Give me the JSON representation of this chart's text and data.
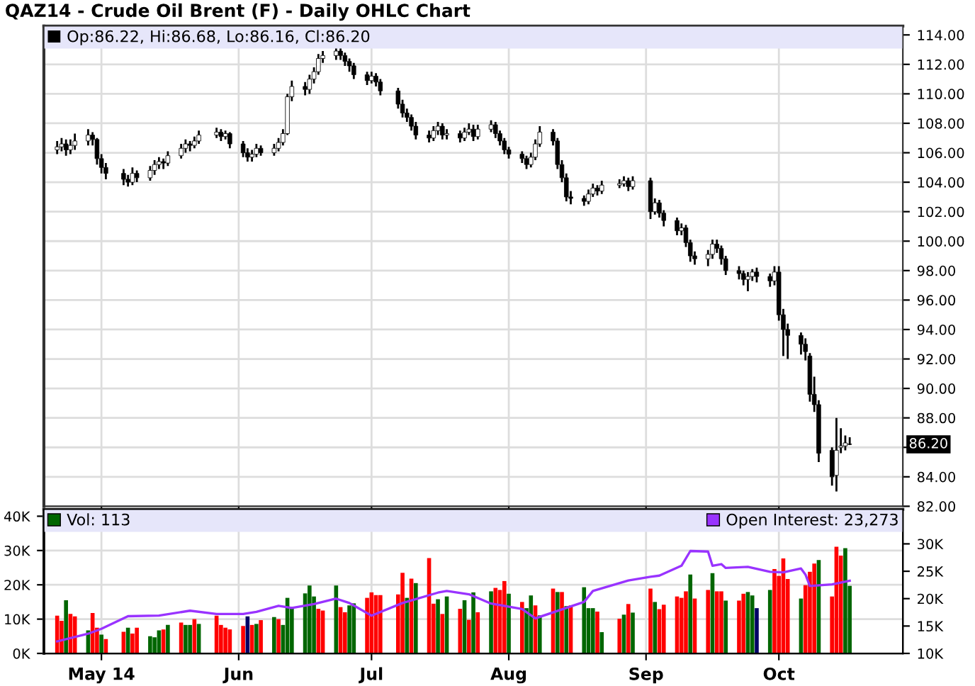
{
  "chart_data": [
    {
      "type": "candlestick",
      "title": "QAZ14 - Crude Oil Brent (F) - Daily OHLC Chart",
      "x": [
        "2014-04-21",
        "2014-04-22",
        "2014-04-23",
        "2014-04-24",
        "2014-04-25",
        "2014-04-28",
        "2014-04-29",
        "2014-04-30",
        "2014-05-01",
        "2014-05-02",
        "2014-05-06",
        "2014-05-07",
        "2014-05-08",
        "2014-05-09",
        "2014-05-12",
        "2014-05-13",
        "2014-05-14",
        "2014-05-15",
        "2014-05-16",
        "2014-05-19",
        "2014-05-20",
        "2014-05-21",
        "2014-05-22",
        "2014-05-23",
        "2014-05-27",
        "2014-05-28",
        "2014-05-29",
        "2014-05-30",
        "2014-06-02",
        "2014-06-03",
        "2014-06-04",
        "2014-06-05",
        "2014-06-06",
        "2014-06-09",
        "2014-06-10",
        "2014-06-11",
        "2014-06-12",
        "2014-06-13",
        "2014-06-16",
        "2014-06-17",
        "2014-06-18",
        "2014-06-19",
        "2014-06-20",
        "2014-06-23",
        "2014-06-24",
        "2014-06-25",
        "2014-06-26",
        "2014-06-27",
        "2014-06-30",
        "2014-07-01",
        "2014-07-02",
        "2014-07-03",
        "2014-07-07",
        "2014-07-08",
        "2014-07-09",
        "2014-07-10",
        "2014-07-11",
        "2014-07-14",
        "2014-07-15",
        "2014-07-16",
        "2014-07-17",
        "2014-07-18",
        "2014-07-21",
        "2014-07-22",
        "2014-07-23",
        "2014-07-24",
        "2014-07-25",
        "2014-07-28",
        "2014-07-29",
        "2014-07-30",
        "2014-07-31",
        "2014-08-01",
        "2014-08-04",
        "2014-08-05",
        "2014-08-06",
        "2014-08-07",
        "2014-08-08",
        "2014-08-11",
        "2014-08-12",
        "2014-08-13",
        "2014-08-14",
        "2014-08-15",
        "2014-08-18",
        "2014-08-19",
        "2014-08-20",
        "2014-08-21",
        "2014-08-22",
        "2014-08-26",
        "2014-08-27",
        "2014-08-28",
        "2014-08-29",
        "2014-09-02",
        "2014-09-03",
        "2014-09-04",
        "2014-09-05",
        "2014-09-08",
        "2014-09-09",
        "2014-09-10",
        "2014-09-11",
        "2014-09-12",
        "2014-09-15",
        "2014-09-16",
        "2014-09-17",
        "2014-09-18",
        "2014-09-19",
        "2014-09-22",
        "2014-09-23",
        "2014-09-24",
        "2014-09-25",
        "2014-09-26",
        "2014-09-29",
        "2014-09-30",
        "2014-10-01",
        "2014-10-02",
        "2014-10-03",
        "2014-10-06",
        "2014-10-07",
        "2014-10-08",
        "2014-10-09",
        "2014-10-10",
        "2014-10-13",
        "2014-10-14",
        "2014-10-15",
        "2014-10-16",
        "2014-10-17"
      ],
      "series": [
        {
          "name": "Op:86.22, Hi:86.68, Lo:86.16, Cl:86.20",
          "color": "#000000",
          "ohlc": [
            [
              106.2,
              106.8,
              105.9,
              106.4
            ],
            [
              106.4,
              107.0,
              106.1,
              106.6
            ],
            [
              106.6,
              106.9,
              105.8,
              106.2
            ],
            [
              106.2,
              106.9,
              105.9,
              106.5
            ],
            [
              106.5,
              107.3,
              106.2,
              106.8
            ],
            [
              106.8,
              107.6,
              106.5,
              107.2
            ],
            [
              107.2,
              107.4,
              106.5,
              106.9
            ],
            [
              106.9,
              107.0,
              105.2,
              105.6
            ],
            [
              105.6,
              105.9,
              104.6,
              105.0
            ],
            [
              105.0,
              105.3,
              104.2,
              104.6
            ],
            [
              104.6,
              104.9,
              103.8,
              104.2
            ],
            [
              104.2,
              104.5,
              103.7,
              104.0
            ],
            [
              104.0,
              105.0,
              103.8,
              104.6
            ],
            [
              104.6,
              104.8,
              104.0,
              104.3
            ],
            [
              104.3,
              105.1,
              104.1,
              104.8
            ],
            [
              104.8,
              105.5,
              104.5,
              105.2
            ],
            [
              105.2,
              105.7,
              104.9,
              105.4
            ],
            [
              105.4,
              105.6,
              104.9,
              105.3
            ],
            [
              105.3,
              106.1,
              105.1,
              105.8
            ],
            [
              105.8,
              106.6,
              105.6,
              106.3
            ],
            [
              106.3,
              106.9,
              106.0,
              106.6
            ],
            [
              106.6,
              106.8,
              106.1,
              106.5
            ],
            [
              106.5,
              107.1,
              106.3,
              106.8
            ],
            [
              106.8,
              107.5,
              106.6,
              107.2
            ],
            [
              107.2,
              107.7,
              107.0,
              107.4
            ],
            [
              107.4,
              107.6,
              106.8,
              107.1
            ],
            [
              107.1,
              107.5,
              106.9,
              107.3
            ],
            [
              107.3,
              107.4,
              106.3,
              106.6
            ],
            [
              106.6,
              106.8,
              105.7,
              106.0
            ],
            [
              106.0,
              106.3,
              105.4,
              105.7
            ],
            [
              105.7,
              106.2,
              105.4,
              105.9
            ],
            [
              105.9,
              106.6,
              105.7,
              106.3
            ],
            [
              106.3,
              106.5,
              105.8,
              106.0
            ],
            [
              106.0,
              106.6,
              105.8,
              106.3
            ],
            [
              106.3,
              107.0,
              106.1,
              106.7
            ],
            [
              106.7,
              107.6,
              106.5,
              107.3
            ],
            [
              107.3,
              110.0,
              107.2,
              109.8
            ],
            [
              109.8,
              110.9,
              109.5,
              110.5
            ],
            [
              110.5,
              110.8,
              109.9,
              110.3
            ],
            [
              110.3,
              111.3,
              110.0,
              111.0
            ],
            [
              111.0,
              111.8,
              110.7,
              111.5
            ],
            [
              111.5,
              112.7,
              111.3,
              112.4
            ],
            [
              112.4,
              112.9,
              112.1,
              112.6
            ],
            [
              112.6,
              113.3,
              112.3,
              112.9
            ],
            [
              112.9,
              113.1,
              112.3,
              112.6
            ],
            [
              112.6,
              112.8,
              111.9,
              112.2
            ],
            [
              112.2,
              112.4,
              111.5,
              111.9
            ],
            [
              111.9,
              112.1,
              111.0,
              111.3
            ],
            [
              111.3,
              111.5,
              110.6,
              110.9
            ],
            [
              110.9,
              111.5,
              110.7,
              111.2
            ],
            [
              111.2,
              111.4,
              110.5,
              110.8
            ],
            [
              110.8,
              111.0,
              109.9,
              110.2
            ],
            [
              110.2,
              110.4,
              109.0,
              109.3
            ],
            [
              109.3,
              109.6,
              108.4,
              108.7
            ],
            [
              108.7,
              109.0,
              108.1,
              108.4
            ],
            [
              108.4,
              108.6,
              107.5,
              107.8
            ],
            [
              107.8,
              108.1,
              106.9,
              107.2
            ],
            [
              107.2,
              107.5,
              106.7,
              107.0
            ],
            [
              107.0,
              107.8,
              106.8,
              107.5
            ],
            [
              107.5,
              108.1,
              107.2,
              107.8
            ],
            [
              107.8,
              108.0,
              106.9,
              107.2
            ],
            [
              107.2,
              107.6,
              106.9,
              107.3
            ],
            [
              107.3,
              107.5,
              106.7,
              107.0
            ],
            [
              107.0,
              107.7,
              106.8,
              107.4
            ],
            [
              107.4,
              108.0,
              107.2,
              107.6
            ],
            [
              107.6,
              107.9,
              106.8,
              107.1
            ],
            [
              107.1,
              107.9,
              106.9,
              107.6
            ],
            [
              107.6,
              108.2,
              107.4,
              107.9
            ],
            [
              107.9,
              108.1,
              107.0,
              107.3
            ],
            [
              107.3,
              107.5,
              106.5,
              106.8
            ],
            [
              106.8,
              107.0,
              105.9,
              106.2
            ],
            [
              106.2,
              106.4,
              105.6,
              105.9
            ],
            [
              105.9,
              106.1,
              105.3,
              105.6
            ],
            [
              105.6,
              105.8,
              104.9,
              105.2
            ],
            [
              105.2,
              106.0,
              105.0,
              105.7
            ],
            [
              105.7,
              106.9,
              105.5,
              106.6
            ],
            [
              106.6,
              107.8,
              106.4,
              107.4
            ],
            [
              107.4,
              107.6,
              106.5,
              106.8
            ],
            [
              106.8,
              107.0,
              104.9,
              105.2
            ],
            [
              105.2,
              105.5,
              104.0,
              104.3
            ],
            [
              104.3,
              104.6,
              102.7,
              103.0
            ],
            [
              103.0,
              103.4,
              102.5,
              102.9
            ],
            [
              102.9,
              103.1,
              102.4,
              102.7
            ],
            [
              102.7,
              103.5,
              102.5,
              103.2
            ],
            [
              103.2,
              103.9,
              103.0,
              103.6
            ],
            [
              103.6,
              103.8,
              103.1,
              103.4
            ],
            [
              103.4,
              104.1,
              103.2,
              103.8
            ],
            [
              103.8,
              104.2,
              103.6,
              103.9
            ],
            [
              103.9,
              104.4,
              103.7,
              104.1
            ],
            [
              104.1,
              104.3,
              103.4,
              103.7
            ],
            [
              103.7,
              104.4,
              103.5,
              104.1
            ],
            [
              104.1,
              104.3,
              101.5,
              102.0
            ],
            [
              102.0,
              102.9,
              101.8,
              102.6
            ],
            [
              102.6,
              102.8,
              101.6,
              101.9
            ],
            [
              101.9,
              102.1,
              101.0,
              101.4
            ],
            [
              101.4,
              101.6,
              100.4,
              100.7
            ],
            [
              100.7,
              101.2,
              100.4,
              100.9
            ],
            [
              100.9,
              101.1,
              99.6,
              99.9
            ],
            [
              99.9,
              100.1,
              98.6,
              99.0
            ],
            [
              99.0,
              99.3,
              98.4,
              98.8
            ],
            [
              98.8,
              99.4,
              98.3,
              99.1
            ],
            [
              99.1,
              100.1,
              98.8,
              99.8
            ],
            [
              99.8,
              100.1,
              99.2,
              99.5
            ],
            [
              99.5,
              99.7,
              98.4,
              98.8
            ],
            [
              98.8,
              99.0,
              97.7,
              98.0
            ],
            [
              98.0,
              98.3,
              97.4,
              97.8
            ],
            [
              97.8,
              98.0,
              97.0,
              97.4
            ],
            [
              97.4,
              97.9,
              96.6,
              97.6
            ],
            [
              97.6,
              98.1,
              97.3,
              97.9
            ],
            [
              97.9,
              98.2,
              97.2,
              97.6
            ],
            [
              97.6,
              97.8,
              96.9,
              97.3
            ],
            [
              97.3,
              98.3,
              97.0,
              97.9
            ],
            [
              97.9,
              98.3,
              94.6,
              95.0
            ],
            [
              95.0,
              95.4,
              92.2,
              94.0
            ],
            [
              94.0,
              94.4,
              92.0,
              93.6
            ],
            [
              93.6,
              93.8,
              92.3,
              93.0
            ],
            [
              93.0,
              93.4,
              91.9,
              92.5
            ],
            [
              92.2,
              92.4,
              89.1,
              89.6
            ],
            [
              89.6,
              90.8,
              88.4,
              88.9
            ],
            [
              88.9,
              89.2,
              85.0,
              85.6
            ],
            [
              85.8,
              86.0,
              83.4,
              84.0
            ],
            [
              84.1,
              88.0,
              83.0,
              85.8
            ],
            [
              86.0,
              87.3,
              85.6,
              86.1
            ],
            [
              86.1,
              86.8,
              85.8,
              86.3
            ],
            [
              86.22,
              86.68,
              86.16,
              86.2
            ]
          ]
        }
      ],
      "xlim": [
        "2014-04-18",
        "2014-10-29"
      ],
      "xticks": [
        {
          "value": "2014-05-01",
          "label": null
        },
        {
          "value": "2014-06-01",
          "label": null
        },
        {
          "value": "2014-07-01",
          "label": null
        },
        {
          "value": "2014-08-01",
          "label": null
        },
        {
          "value": "2014-09-01",
          "label": null
        },
        {
          "value": "2014-10-01",
          "label": null
        }
      ],
      "ylim": [
        82,
        114.6
      ],
      "yticks": [
        {
          "value": 82,
          "label": "82.00"
        },
        {
          "value": 84,
          "label": "84.00"
        },
        {
          "value": 86,
          "label": null
        },
        {
          "value": 88,
          "label": "88.00"
        },
        {
          "value": 90,
          "label": "90.00"
        },
        {
          "value": 92,
          "label": "92.00"
        },
        {
          "value": 94,
          "label": "94.00"
        },
        {
          "value": 96,
          "label": "96.00"
        },
        {
          "value": 98,
          "label": "98.00"
        },
        {
          "value": 100,
          "label": "100.00"
        },
        {
          "value": 102,
          "label": "102.00"
        },
        {
          "value": 104,
          "label": "104.00"
        },
        {
          "value": 106,
          "label": "106.00"
        },
        {
          "value": 108,
          "label": "108.00"
        },
        {
          "value": 110,
          "label": "110.00"
        },
        {
          "value": 112,
          "label": "112.00"
        },
        {
          "value": 114,
          "label": "114.00"
        }
      ],
      "tick_labels": "y",
      "grid": true,
      "legend": "top left",
      "annotations": [
        "86.20"
      ]
    },
    {
      "type": "bar",
      "x": [
        "2014-04-21",
        "2014-04-22",
        "2014-04-23",
        "2014-04-24",
        "2014-04-25",
        "2014-04-28",
        "2014-04-29",
        "2014-04-30",
        "2014-05-01",
        "2014-05-02",
        "2014-05-06",
        "2014-05-07",
        "2014-05-08",
        "2014-05-09",
        "2014-05-12",
        "2014-05-13",
        "2014-05-14",
        "2014-05-15",
        "2014-05-16",
        "2014-05-19",
        "2014-05-20",
        "2014-05-21",
        "2014-05-22",
        "2014-05-23",
        "2014-05-27",
        "2014-05-28",
        "2014-05-29",
        "2014-05-30",
        "2014-06-02",
        "2014-06-03",
        "2014-06-04",
        "2014-06-05",
        "2014-06-06",
        "2014-06-09",
        "2014-06-10",
        "2014-06-11",
        "2014-06-12",
        "2014-06-13",
        "2014-06-16",
        "2014-06-17",
        "2014-06-18",
        "2014-06-19",
        "2014-06-20",
        "2014-06-23",
        "2014-06-24",
        "2014-06-25",
        "2014-06-26",
        "2014-06-27",
        "2014-06-30",
        "2014-07-01",
        "2014-07-02",
        "2014-07-03",
        "2014-07-07",
        "2014-07-08",
        "2014-07-09",
        "2014-07-10",
        "2014-07-11",
        "2014-07-14",
        "2014-07-15",
        "2014-07-16",
        "2014-07-17",
        "2014-07-18",
        "2014-07-21",
        "2014-07-22",
        "2014-07-23",
        "2014-07-24",
        "2014-07-25",
        "2014-07-28",
        "2014-07-29",
        "2014-07-30",
        "2014-07-31",
        "2014-08-01",
        "2014-08-04",
        "2014-08-05",
        "2014-08-06",
        "2014-08-07",
        "2014-08-08",
        "2014-08-11",
        "2014-08-12",
        "2014-08-13",
        "2014-08-14",
        "2014-08-15",
        "2014-08-18",
        "2014-08-19",
        "2014-08-20",
        "2014-08-21",
        "2014-08-22",
        "2014-08-26",
        "2014-08-27",
        "2014-08-28",
        "2014-08-29",
        "2014-09-02",
        "2014-09-03",
        "2014-09-04",
        "2014-09-05",
        "2014-09-08",
        "2014-09-09",
        "2014-09-10",
        "2014-09-11",
        "2014-09-12",
        "2014-09-15",
        "2014-09-16",
        "2014-09-17",
        "2014-09-18",
        "2014-09-19",
        "2014-09-22",
        "2014-09-23",
        "2014-09-24",
        "2014-09-25",
        "2014-09-26",
        "2014-09-29",
        "2014-09-30",
        "2014-10-01",
        "2014-10-02",
        "2014-10-03",
        "2014-10-06",
        "2014-10-07",
        "2014-10-08",
        "2014-10-09",
        "2014-10-10",
        "2014-10-13",
        "2014-10-14",
        "2014-10-15",
        "2014-10-16",
        "2014-10-17"
      ],
      "series": [
        {
          "name": "Vol: 113",
          "color": "#006600",
          "values": [
            11,
            9.5,
            15.5,
            11.5,
            10.8,
            6.7,
            11.8,
            7.5,
            5.5,
            4.2,
            6.3,
            7.5,
            5.8,
            7.5,
            5,
            4.7,
            6.7,
            7,
            8.3,
            9,
            8.3,
            8.3,
            10,
            8.6,
            11,
            8.3,
            7.5,
            7,
            8,
            10.8,
            8.3,
            8.6,
            9.7,
            10.6,
            10,
            8.3,
            16.2,
            13.6,
            17.5,
            19.8,
            16.6,
            13,
            12.5,
            19.8,
            13.5,
            12,
            14,
            14.6,
            16.2,
            17.8,
            17,
            17,
            17.2,
            23.5,
            16.2,
            21.8,
            20.5,
            27.8,
            14.5,
            15.8,
            11.5,
            16.6,
            13,
            15.5,
            9.8,
            17.8,
            12,
            18.1,
            19.1,
            18.5,
            21.1,
            17.4,
            15,
            13.2,
            16.9,
            14,
            11.1,
            18.9,
            17.9,
            17.9,
            13.8,
            14,
            19.3,
            13.2,
            13.2,
            12.2,
            6.2,
            10.1,
            11.3,
            14.4,
            11.9,
            18.9,
            15,
            12.9,
            14.2,
            16.6,
            16.2,
            18.1,
            23,
            16,
            18.5,
            23.4,
            18.1,
            18.1,
            15.4,
            15.4,
            17.4,
            17.9,
            16.9,
            13.2,
            18.5,
            24.6,
            22.6,
            27.7,
            21.7,
            16,
            19.9,
            23.8,
            26.2,
            27.2,
            16.6,
            31.1,
            28.5,
            30.7,
            19.7
          ],
          "colors": [
            "#ff0000",
            "#ff0000",
            "#006600",
            "#ff0000",
            "#ff0000",
            "#006600",
            "#ff0000",
            "#ff0000",
            "#006600",
            "#ff0000",
            "#ff0000",
            "#006600",
            "#ff0000",
            "#ff0000",
            "#006600",
            "#006600",
            "#006600",
            "#ff0000",
            "#006600",
            "#ff0000",
            "#006600",
            "#006600",
            "#ff0000",
            "#006600",
            "#ff0000",
            "#ff0000",
            "#ff0000",
            "#ff0000",
            "#ff0000",
            "#000066",
            "#ff0000",
            "#006600",
            "#ff0000",
            "#006600",
            "#ff0000",
            "#006600",
            "#006600",
            "#006600",
            "#006600",
            "#006600",
            "#006600",
            "#ff0000",
            "#ff0000",
            "#006600",
            "#ff0000",
            "#ff0000",
            "#006600",
            "#006600",
            "#ff0000",
            "#ff0000",
            "#ff0000",
            "#ff0000",
            "#ff0000",
            "#ff0000",
            "#006600",
            "#ff0000",
            "#006600",
            "#ff0000",
            "#ff0000",
            "#006600",
            "#ff0000",
            "#006600",
            "#ff0000",
            "#006600",
            "#ff0000",
            "#006600",
            "#ff0000",
            "#006600",
            "#ff0000",
            "#ff0000",
            "#ff0000",
            "#006600",
            "#ff0000",
            "#006600",
            "#006600",
            "#ff0000",
            "#006600",
            "#ff0000",
            "#006600",
            "#ff0000",
            "#006600",
            "#ff0000",
            "#006600",
            "#006600",
            "#006600",
            "#ff0000",
            "#006600",
            "#ff0000",
            "#006600",
            "#ff0000",
            "#006600",
            "#ff0000",
            "#006600",
            "#ff0000",
            "#ff0000",
            "#ff0000",
            "#ff0000",
            "#ff0000",
            "#006600",
            "#ff0000",
            "#ff0000",
            "#006600",
            "#ff0000",
            "#ff0000",
            "#006600",
            "#ff0000",
            "#ff0000",
            "#006600",
            "#006600",
            "#000066",
            "#006600",
            "#ff0000",
            "#ff0000",
            "#ff0000",
            "#ff0000",
            "#006600",
            "#ff0000",
            "#ff0000",
            "#ff0000",
            "#006600",
            "#ff0000",
            "#ff0000",
            "#ff0000",
            "#006600",
            "#006600"
          ]
        },
        {
          "name": "Open Interest: 23,273",
          "type": "line",
          "axis": "y2",
          "color": "#9933ff",
          "x": [
            "2014-04-21",
            "2014-04-28",
            "2014-05-01",
            "2014-05-07",
            "2014-05-14",
            "2014-05-21",
            "2014-05-27",
            "2014-06-02",
            "2014-06-05",
            "2014-06-10",
            "2014-06-13",
            "2014-06-18",
            "2014-06-23",
            "2014-06-26",
            "2014-07-01",
            "2014-07-08",
            "2014-07-16",
            "2014-07-18",
            "2014-07-23",
            "2014-07-28",
            "2014-08-04",
            "2014-08-07",
            "2014-08-18",
            "2014-08-20",
            "2014-08-28",
            "2014-09-02",
            "2014-09-04",
            "2014-09-09",
            "2014-09-11",
            "2014-09-15",
            "2014-09-16",
            "2014-09-18",
            "2014-09-19",
            "2014-09-24",
            "2014-09-29",
            "2014-10-02",
            "2014-10-06",
            "2014-10-07",
            "2014-10-08",
            "2014-10-13",
            "2014-10-17"
          ],
          "values": [
            12.2,
            13.6,
            14.5,
            16.8,
            16.9,
            17.8,
            17.2,
            17.2,
            17.6,
            18.7,
            18.3,
            19,
            20,
            19.2,
            16.9,
            19.2,
            21.1,
            21.4,
            20.8,
            19.1,
            18.1,
            16.4,
            19.4,
            21.4,
            23.3,
            24,
            24.2,
            26,
            28.7,
            28.6,
            26,
            26.3,
            25.6,
            25.8,
            24.9,
            24.8,
            25.5,
            24.4,
            22.3,
            22.6,
            23.273
          ]
        }
      ],
      "xlim": [
        "2014-04-18",
        "2014-10-29"
      ],
      "xticks": [
        {
          "value": "2014-05-01",
          "label": "May 14"
        },
        {
          "value": "2014-06-01",
          "label": "Jun"
        },
        {
          "value": "2014-07-01",
          "label": "Jul"
        },
        {
          "value": "2014-08-01",
          "label": "Aug"
        },
        {
          "value": "2014-09-01",
          "label": "Sep"
        },
        {
          "value": "2014-10-01",
          "label": "Oct"
        }
      ],
      "ylim": [
        0,
        42
      ],
      "yticks": [
        {
          "value": 0,
          "label": "0K"
        },
        {
          "value": 10,
          "label": "10K"
        },
        {
          "value": 20,
          "label": "20K"
        },
        {
          "value": 30,
          "label": "30K"
        },
        {
          "value": 40,
          "label": "40K"
        }
      ],
      "y2lim": [
        10,
        36.3
      ],
      "y2ticks": [
        {
          "value": 10,
          "label": "10K"
        },
        {
          "value": 15,
          "label": "15K"
        },
        {
          "value": 20,
          "label": "20K"
        },
        {
          "value": 25,
          "label": "25K"
        },
        {
          "value": 30,
          "label": "30K"
        }
      ],
      "grid": true,
      "legend": "top left"
    }
  ]
}
